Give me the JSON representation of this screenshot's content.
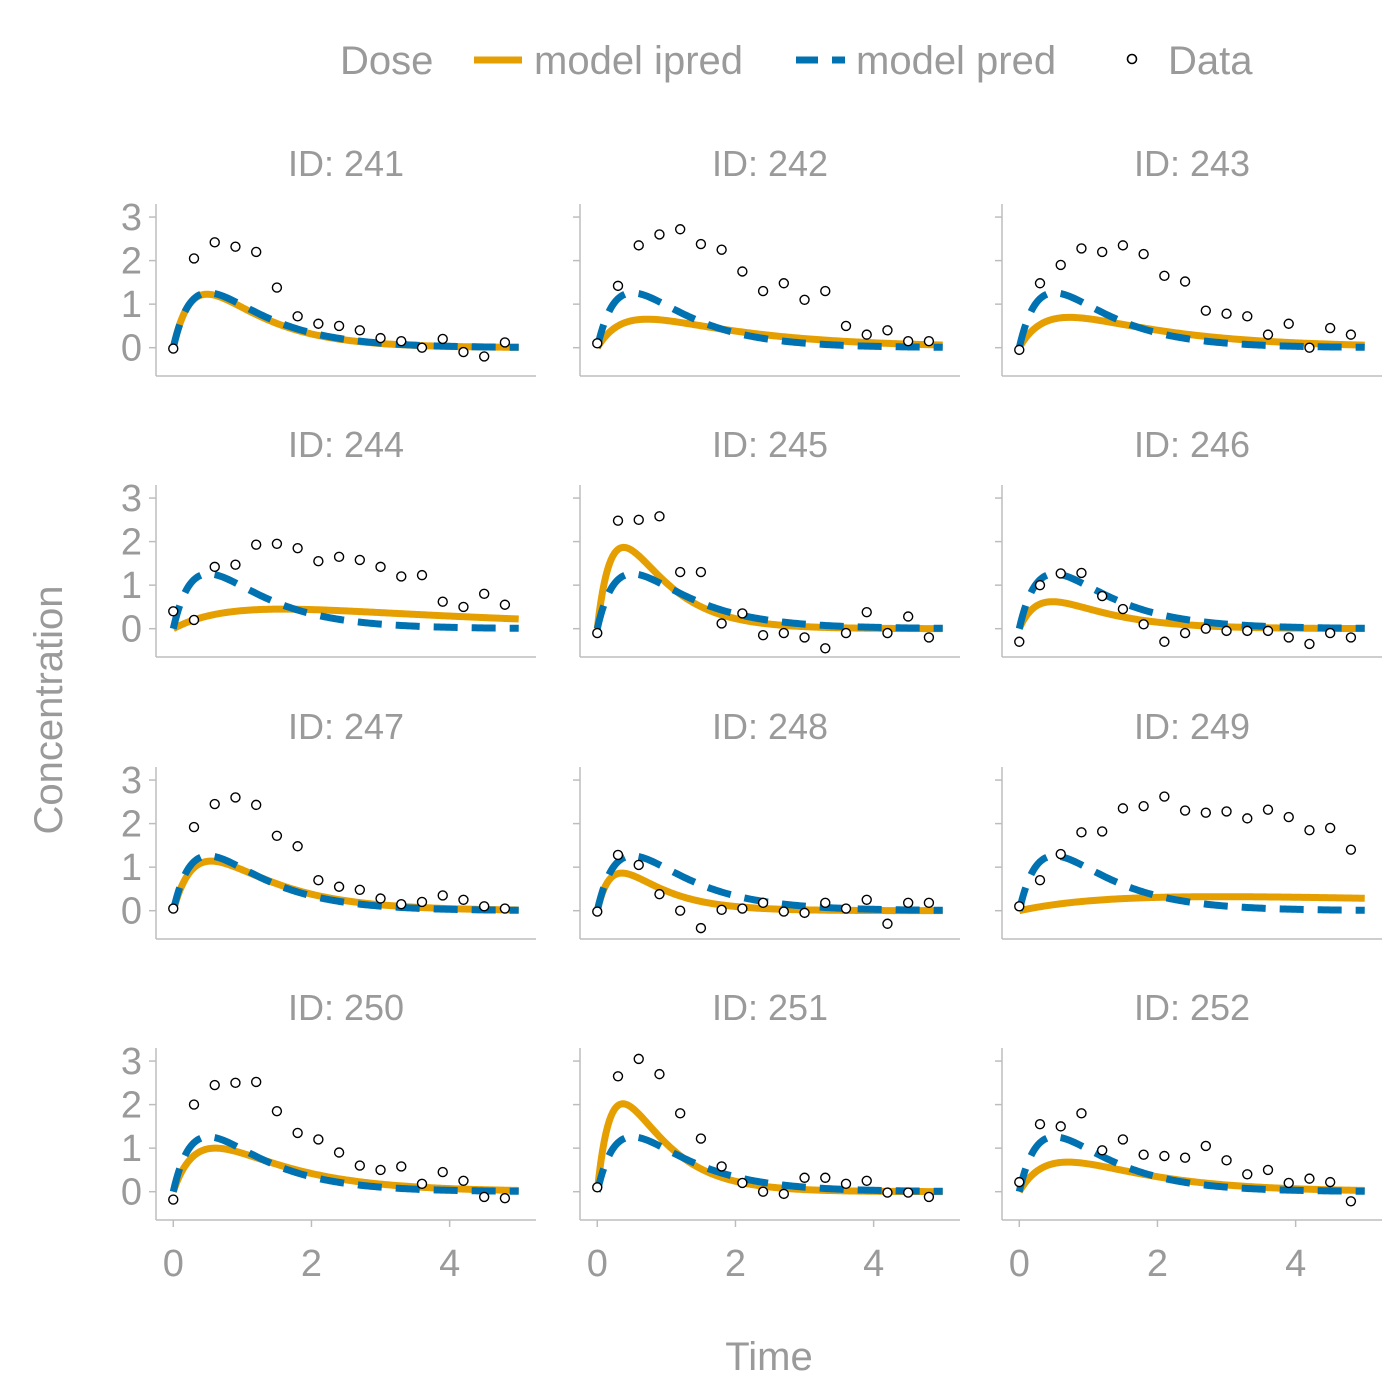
{
  "chart_data": {
    "type": "line",
    "xlabel": "Time",
    "ylabel": "Concentration",
    "xlim": [
      -0.25,
      5.25
    ],
    "ylim": [
      -0.65,
      3.3
    ],
    "xticks": [
      0,
      2,
      4
    ],
    "yticks": [
      0,
      1,
      2,
      3
    ],
    "legend": {
      "placement": "top",
      "title": "Dose",
      "entries": [
        {
          "name": "model ipred",
          "style": "solid",
          "color": "#E69F00"
        },
        {
          "name": "model pred",
          "style": "dashed",
          "color": "#0072B2"
        },
        {
          "name": "Data",
          "style": "point",
          "color": "#000000"
        }
      ]
    },
    "x": [
      0,
      0.3,
      0.6,
      0.9,
      1.2,
      1.5,
      1.8,
      2.1,
      2.4,
      2.7,
      3.0,
      3.3,
      3.6,
      3.9,
      4.2,
      4.5,
      4.8
    ],
    "panels": [
      {
        "title": "ID: 241",
        "pred": {
          "ka": 3.0,
          "ke": 1.2,
          "s": 5.8
        },
        "ipred": {
          "ka": 3.2,
          "ke": 1.2,
          "s": 5.9
        },
        "data": [
          -0.02,
          2.05,
          2.42,
          2.32,
          2.2,
          1.38,
          0.72,
          0.55,
          0.5,
          0.4,
          0.22,
          0.15,
          0.0,
          0.2,
          -0.1,
          -0.2,
          0.12
        ]
      },
      {
        "title": "ID: 242",
        "pred": {
          "ka": 3.0,
          "ke": 1.2,
          "s": 5.8
        },
        "ipred": {
          "ka": 2.6,
          "ke": 0.62,
          "s": 4.3
        },
        "data": [
          0.1,
          1.42,
          2.35,
          2.6,
          2.72,
          2.38,
          2.25,
          1.75,
          1.3,
          1.48,
          1.1,
          1.3,
          0.5,
          0.3,
          0.4,
          0.15,
          0.15
        ]
      },
      {
        "title": "ID: 243",
        "pred": {
          "ka": 3.0,
          "ke": 1.2,
          "s": 5.8
        },
        "ipred": {
          "ka": 2.5,
          "ke": 0.65,
          "s": 4.3
        },
        "data": [
          -0.05,
          1.48,
          1.9,
          2.28,
          2.2,
          2.35,
          2.15,
          1.65,
          1.52,
          0.85,
          0.78,
          0.72,
          0.3,
          0.55,
          0.0,
          0.45,
          0.3
        ]
      },
      {
        "title": "ID: 244",
        "pred": {
          "ka": 3.0,
          "ke": 1.2,
          "s": 5.8
        },
        "ipred": {
          "ka": 1.2,
          "ke": 0.28,
          "s": 3.0
        },
        "data": [
          0.4,
          0.2,
          1.42,
          1.47,
          1.93,
          1.95,
          1.85,
          1.55,
          1.65,
          1.58,
          1.42,
          1.2,
          1.23,
          0.62,
          0.5,
          0.8,
          0.55
        ]
      },
      {
        "title": "ID: 245",
        "pred": {
          "ka": 3.0,
          "ke": 1.2,
          "s": 5.8
        },
        "ipred": {
          "ka": 4.0,
          "ke": 1.6,
          "s": 8.6
        },
        "data": [
          -0.1,
          2.48,
          2.5,
          2.58,
          1.3,
          1.3,
          0.12,
          0.35,
          -0.15,
          -0.1,
          -0.2,
          -0.45,
          -0.1,
          0.38,
          -0.1,
          0.28,
          -0.2
        ]
      },
      {
        "title": "ID: 246",
        "pred": {
          "ka": 3.0,
          "ke": 1.2,
          "s": 5.8
        },
        "ipred": {
          "ka": 3.2,
          "ke": 1.25,
          "s": 2.9
        },
        "data": [
          -0.3,
          1.0,
          1.27,
          1.28,
          0.75,
          0.45,
          0.1,
          -0.3,
          -0.1,
          0.0,
          -0.05,
          -0.05,
          -0.05,
          -0.2,
          -0.35,
          -0.1,
          -0.2
        ]
      },
      {
        "title": "ID: 247",
        "pred": {
          "ka": 3.0,
          "ke": 1.2,
          "s": 5.8
        },
        "ipred": {
          "ka": 2.9,
          "ke": 1.05,
          "s": 5.6
        },
        "data": [
          0.05,
          1.92,
          2.45,
          2.6,
          2.43,
          1.72,
          1.48,
          0.7,
          0.55,
          0.48,
          0.28,
          0.15,
          0.2,
          0.35,
          0.25,
          0.1,
          0.05
        ]
      },
      {
        "title": "ID: 248",
        "pred": {
          "ka": 3.0,
          "ke": 1.2,
          "s": 5.8
        },
        "ipred": {
          "ka": 4.5,
          "ke": 1.6,
          "s": 4.3
        },
        "data": [
          -0.02,
          1.28,
          1.05,
          0.38,
          0.0,
          -0.4,
          0.02,
          0.05,
          0.18,
          -0.02,
          -0.05,
          0.18,
          0.05,
          0.25,
          -0.3,
          0.18,
          0.18
        ]
      },
      {
        "title": "ID: 249",
        "pred": {
          "ka": 3.0,
          "ke": 1.2,
          "s": 5.8
        },
        "ipred": {
          "ka": 0.75,
          "ke": 0.12,
          "s": 2.85
        },
        "data": [
          0.1,
          0.7,
          1.3,
          1.8,
          1.82,
          2.35,
          2.4,
          2.62,
          2.3,
          2.25,
          2.28,
          2.12,
          2.32,
          2.15,
          1.85,
          1.9,
          1.4
        ]
      },
      {
        "title": "ID: 250",
        "pred": {
          "ka": 3.0,
          "ke": 1.2,
          "s": 5.8
        },
        "ipred": {
          "ka": 2.7,
          "ke": 0.9,
          "s": 5.2
        },
        "data": [
          -0.18,
          2.0,
          2.45,
          2.5,
          2.52,
          1.85,
          1.35,
          1.2,
          0.9,
          0.6,
          0.5,
          0.58,
          0.18,
          0.45,
          0.25,
          -0.12,
          -0.15
        ]
      },
      {
        "title": "ID: 251",
        "pred": {
          "ka": 3.0,
          "ke": 1.2,
          "s": 5.8
        },
        "ipred": {
          "ka": 4.2,
          "ke": 1.6,
          "s": 9.6
        },
        "data": [
          0.1,
          2.65,
          3.05,
          2.7,
          1.8,
          1.22,
          0.58,
          0.2,
          0.0,
          -0.05,
          0.32,
          0.32,
          0.18,
          0.25,
          -0.02,
          -0.02,
          -0.12
        ]
      },
      {
        "title": "ID: 252",
        "pred": {
          "ka": 3.0,
          "ke": 1.2,
          "s": 5.8
        },
        "ipred": {
          "ka": 2.2,
          "ke": 0.85,
          "s": 3.2
        },
        "data": [
          0.22,
          1.55,
          1.5,
          1.8,
          0.95,
          1.2,
          0.85,
          0.82,
          0.78,
          1.05,
          0.72,
          0.4,
          0.5,
          0.2,
          0.3,
          0.22,
          -0.22
        ]
      }
    ]
  }
}
